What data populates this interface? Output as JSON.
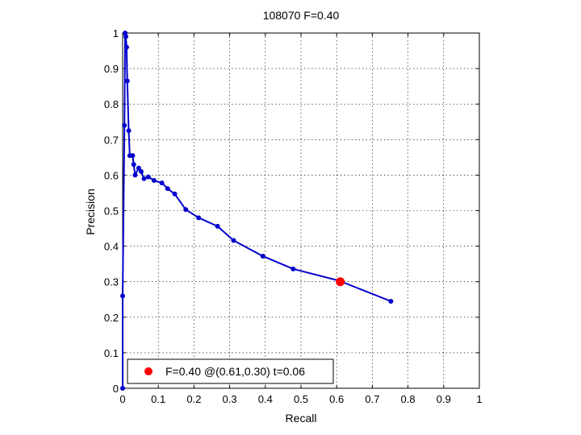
{
  "chart_data": {
    "type": "line",
    "title": "108070 F=0.40",
    "xlabel": "Recall",
    "ylabel": "Precision",
    "xlim": [
      0,
      1
    ],
    "ylim": [
      0,
      1
    ],
    "xticks": [
      "0",
      "0.1",
      "0.2",
      "0.3",
      "0.4",
      "0.5",
      "0.6",
      "0.7",
      "0.8",
      "0.9",
      "1"
    ],
    "yticks": [
      "0",
      "0.1",
      "0.2",
      "0.3",
      "0.4",
      "0.5",
      "0.6",
      "0.7",
      "0.8",
      "0.9",
      "1"
    ],
    "grid": true,
    "legend_position": "bottom-left",
    "series": [
      {
        "color": "#0000cc",
        "points": [
          [
            0.0,
            0.0
          ],
          [
            0.0,
            0.26
          ],
          [
            0.005,
            0.74
          ],
          [
            0.007,
            1.0
          ],
          [
            0.009,
            0.99
          ],
          [
            0.011,
            0.96
          ],
          [
            0.013,
            0.865
          ],
          [
            0.017,
            0.725
          ],
          [
            0.02,
            0.655
          ],
          [
            0.028,
            0.655
          ],
          [
            0.031,
            0.63
          ],
          [
            0.035,
            0.6
          ],
          [
            0.045,
            0.62
          ],
          [
            0.052,
            0.61
          ],
          [
            0.06,
            0.59
          ],
          [
            0.072,
            0.595
          ],
          [
            0.088,
            0.585
          ],
          [
            0.11,
            0.578
          ],
          [
            0.126,
            0.562
          ],
          [
            0.146,
            0.547
          ],
          [
            0.177,
            0.503
          ],
          [
            0.213,
            0.48
          ],
          [
            0.266,
            0.456
          ],
          [
            0.311,
            0.416
          ],
          [
            0.393,
            0.372
          ],
          [
            0.478,
            0.336
          ],
          [
            0.606,
            0.303
          ],
          [
            0.752,
            0.245
          ]
        ]
      }
    ],
    "best_point": {
      "recall": 0.61,
      "precision": 0.3,
      "color": "#ff0000"
    },
    "legend": {
      "text": "F=0.40 @(0.61,0.30) t=0.06",
      "marker_color": "#ff0000"
    }
  }
}
